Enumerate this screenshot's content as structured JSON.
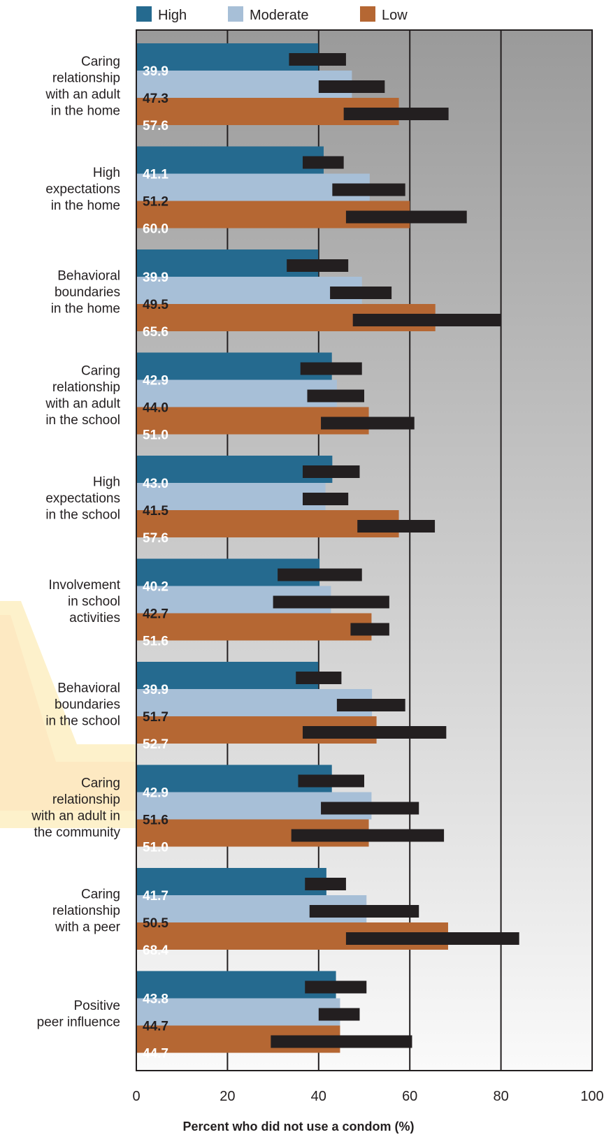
{
  "chart_data": {
    "type": "bar",
    "orientation": "horizontal",
    "xlabel": "Percent who did not use a condom (%)",
    "xlim": [
      0,
      100
    ],
    "xticks": [
      0,
      20,
      40,
      60,
      80,
      100
    ],
    "grid": true,
    "legend_position": "top",
    "categories": [
      "Caring relationship with an adult in the home",
      "High expectations in the home",
      "Behavioral boundaries in the home",
      "Caring relationship with an adult in the school",
      "High expectations in the school",
      "Involvement in school activities",
      "Behavioral boundaries in the school",
      "Caring relationship with an adult in the community",
      "Caring relationship with a peer",
      "Positive peer influence"
    ],
    "category_lines": [
      [
        "Caring",
        "relationship",
        "with an adult",
        "in the home"
      ],
      [
        "High",
        "expectations",
        "in the home"
      ],
      [
        "Behavioral",
        "boundaries",
        "in the home"
      ],
      [
        "Caring",
        "relationship",
        "with an adult",
        "in the school"
      ],
      [
        "High",
        "expectations",
        "in the school"
      ],
      [
        "Involvement",
        "in school",
        "activities"
      ],
      [
        "Behavioral",
        "boundaries",
        "in the school"
      ],
      [
        "Caring",
        "relationship",
        "with an adult in",
        "the community"
      ],
      [
        "Caring",
        "relationship",
        "with a peer"
      ],
      [
        "Positive",
        "peer influence"
      ]
    ],
    "series": [
      {
        "name": "High",
        "color": "#256a8f",
        "label_color": "#ffffff",
        "values": [
          39.9,
          41.1,
          39.9,
          42.9,
          43.0,
          40.2,
          39.9,
          42.9,
          41.7,
          43.8
        ],
        "labels": [
          "39.9",
          "41.1",
          "39.9",
          "42.9",
          "43.0",
          "40.2",
          "39.9",
          "42.9",
          "41.7",
          "43.8"
        ],
        "ci": [
          [
            33.5,
            46
          ],
          [
            36.5,
            45.5
          ],
          [
            33,
            46.5
          ],
          [
            36,
            49.5
          ],
          [
            36.5,
            49
          ],
          [
            31,
            49.5
          ],
          [
            35,
            45
          ],
          [
            35.5,
            50
          ],
          [
            37,
            46
          ],
          [
            37,
            50.5
          ]
        ]
      },
      {
        "name": "Moderate",
        "color": "#a7bfd7",
        "label_color": "#231f20",
        "values": [
          47.3,
          51.2,
          49.5,
          44.0,
          41.5,
          42.7,
          51.7,
          51.6,
          50.5,
          44.7
        ],
        "labels": [
          "47.3",
          "51.2",
          "49.5",
          "44.0",
          "41.5",
          "42.7",
          "51.7",
          "51.6",
          "50.5",
          "44.7"
        ],
        "ci": [
          [
            40,
            54.5
          ],
          [
            43,
            59
          ],
          [
            42.5,
            56
          ],
          [
            37.5,
            50
          ],
          [
            36.5,
            46.5
          ],
          [
            30,
            55.5
          ],
          [
            44,
            59
          ],
          [
            40.5,
            62
          ],
          [
            38,
            62
          ],
          [
            40,
            49
          ]
        ]
      },
      {
        "name": "Low",
        "color": "#b56733",
        "label_color": "#ffffff",
        "values": [
          57.6,
          60.0,
          65.6,
          51.0,
          57.6,
          51.6,
          52.7,
          51.0,
          68.4,
          44.7
        ],
        "labels": [
          "57.6",
          "60.0",
          "65.6",
          "51.0",
          "57.6",
          "51.6",
          "52.7",
          "51.0",
          "68.4",
          "44.7"
        ],
        "ci": [
          [
            45.5,
            68.5
          ],
          [
            46,
            72.5
          ],
          [
            47.5,
            80
          ],
          [
            40.5,
            61
          ],
          [
            48.5,
            65.5
          ],
          [
            47,
            55.5
          ],
          [
            36.5,
            68
          ],
          [
            34,
            67.5
          ],
          [
            46,
            84
          ],
          [
            29.5,
            60.5
          ]
        ]
      }
    ]
  }
}
